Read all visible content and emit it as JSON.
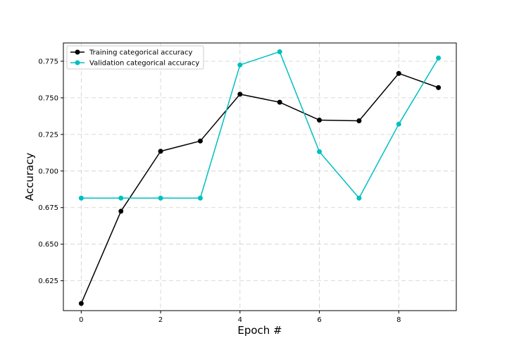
{
  "chart_data": {
    "type": "line",
    "title": "",
    "xlabel": "Epoch #",
    "ylabel": "Accuracy",
    "xlim": [
      -0.45,
      9.45
    ],
    "ylim": [
      0.6046,
      0.7875
    ],
    "x": [
      0,
      1,
      2,
      3,
      4,
      5,
      6,
      7,
      8,
      9
    ],
    "xticks": [
      0,
      2,
      4,
      6,
      8
    ],
    "xtick_labels": [
      "0",
      "2",
      "4",
      "6",
      "8"
    ],
    "yticks": [
      0.625,
      0.65,
      0.675,
      0.7,
      0.725,
      0.75,
      0.775
    ],
    "ytick_labels": [
      "0.625",
      "0.650",
      "0.675",
      "0.700",
      "0.725",
      "0.750",
      "0.775"
    ],
    "grid": true,
    "legend_position": "upper-left",
    "series": [
      {
        "name": "Training categorical accuracy",
        "color": "#000000",
        "marker": "circle",
        "values": [
          0.6095,
          0.6725,
          0.7135,
          0.7205,
          0.7525,
          0.747,
          0.7348,
          0.7343,
          0.7667,
          0.757
        ]
      },
      {
        "name": "Validation categorical accuracy",
        "color": "#00bfbf",
        "marker": "circle",
        "values": [
          0.6815,
          0.6815,
          0.6815,
          0.6815,
          0.7725,
          0.7815,
          0.7132,
          0.6815,
          0.732,
          0.7772
        ]
      }
    ]
  }
}
